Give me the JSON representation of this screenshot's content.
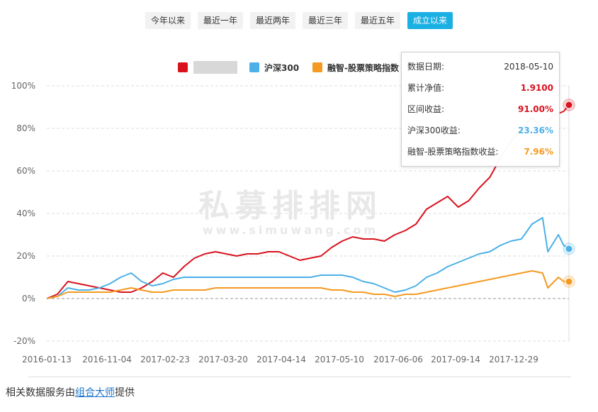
{
  "tabs": [
    {
      "label": "今年以来",
      "active": false
    },
    {
      "label": "最近一年",
      "active": false
    },
    {
      "label": "最近两年",
      "active": false
    },
    {
      "label": "最近三年",
      "active": false
    },
    {
      "label": "最近五年",
      "active": false
    },
    {
      "label": "成立以来",
      "active": true
    }
  ],
  "watermark": {
    "main": "私募排排网",
    "sub": "www.simuwang.com"
  },
  "tooltip": {
    "date_label": "数据日期:",
    "date_value": "2018-05-10",
    "nav_label": "累计净值:",
    "nav_value": "1.9100",
    "ret_label": "区间收益:",
    "ret_value": "91.00%",
    "hs300_label": "沪深300收益:",
    "hs300_value": "23.36%",
    "rz_label": "融智-股票策略指数收益:",
    "rz_value": "7.96%"
  },
  "footer": {
    "prefix": "相关数据服务由",
    "link": "组合大师",
    "suffix": "提供"
  },
  "chart_data": {
    "type": "line",
    "title": "",
    "xlabel": "",
    "ylabel": "",
    "x_ticks": [
      "2016-01-13",
      "2016-11-04",
      "2017-02-23",
      "2017-03-20",
      "2017-04-14",
      "2017-05-10",
      "2017-06-06",
      "2017-09-14",
      "2017-12-29"
    ],
    "y_ticks": [
      "100%",
      "80%",
      "60%",
      "40%",
      "20%",
      "0%",
      "-20%"
    ],
    "y_tick_values": [
      100,
      80,
      60,
      40,
      20,
      0,
      -20
    ],
    "ylim": [
      -20,
      100
    ],
    "grid": true,
    "legend_position": "top",
    "n_points": 100,
    "series": [
      {
        "name": "",
        "color": "#d9121e",
        "points": [
          [
            0,
            0
          ],
          [
            2,
            2
          ],
          [
            4,
            8
          ],
          [
            6,
            7
          ],
          [
            8,
            6
          ],
          [
            10,
            5
          ],
          [
            12,
            4
          ],
          [
            14,
            3
          ],
          [
            16,
            3
          ],
          [
            18,
            5
          ],
          [
            20,
            8
          ],
          [
            22,
            12
          ],
          [
            24,
            10
          ],
          [
            26,
            15
          ],
          [
            28,
            19
          ],
          [
            30,
            21
          ],
          [
            32,
            22
          ],
          [
            34,
            21
          ],
          [
            36,
            20
          ],
          [
            38,
            21
          ],
          [
            40,
            21
          ],
          [
            42,
            22
          ],
          [
            44,
            22
          ],
          [
            46,
            20
          ],
          [
            48,
            18
          ],
          [
            50,
            19
          ],
          [
            52,
            20
          ],
          [
            54,
            24
          ],
          [
            56,
            27
          ],
          [
            58,
            29
          ],
          [
            60,
            28
          ],
          [
            62,
            28
          ],
          [
            64,
            27
          ],
          [
            66,
            30
          ],
          [
            68,
            32
          ],
          [
            70,
            35
          ],
          [
            72,
            42
          ],
          [
            74,
            45
          ],
          [
            76,
            48
          ],
          [
            78,
            43
          ],
          [
            80,
            46
          ],
          [
            82,
            52
          ],
          [
            84,
            57
          ],
          [
            86,
            66
          ],
          [
            88,
            74
          ],
          [
            90,
            80
          ],
          [
            92,
            85
          ],
          [
            94,
            80
          ],
          [
            96,
            86
          ],
          [
            98,
            88
          ],
          [
            99,
            91
          ]
        ],
        "end_value": 91.0
      },
      {
        "name": "沪深300",
        "color": "#4cb0e8",
        "points": [
          [
            0,
            0
          ],
          [
            2,
            1
          ],
          [
            4,
            5
          ],
          [
            6,
            4
          ],
          [
            8,
            4
          ],
          [
            10,
            5
          ],
          [
            12,
            7
          ],
          [
            14,
            10
          ],
          [
            16,
            12
          ],
          [
            18,
            8
          ],
          [
            20,
            6
          ],
          [
            22,
            7
          ],
          [
            24,
            9
          ],
          [
            26,
            10
          ],
          [
            28,
            10
          ],
          [
            30,
            10
          ],
          [
            32,
            10
          ],
          [
            34,
            10
          ],
          [
            36,
            10
          ],
          [
            38,
            10
          ],
          [
            40,
            10
          ],
          [
            42,
            10
          ],
          [
            44,
            10
          ],
          [
            46,
            10
          ],
          [
            48,
            10
          ],
          [
            50,
            10
          ],
          [
            52,
            11
          ],
          [
            54,
            11
          ],
          [
            56,
            11
          ],
          [
            58,
            10
          ],
          [
            60,
            8
          ],
          [
            62,
            7
          ],
          [
            64,
            5
          ],
          [
            66,
            3
          ],
          [
            68,
            4
          ],
          [
            70,
            6
          ],
          [
            72,
            10
          ],
          [
            74,
            12
          ],
          [
            76,
            15
          ],
          [
            78,
            17
          ],
          [
            80,
            19
          ],
          [
            82,
            21
          ],
          [
            84,
            22
          ],
          [
            86,
            25
          ],
          [
            88,
            27
          ],
          [
            90,
            28
          ],
          [
            92,
            35
          ],
          [
            94,
            38
          ],
          [
            95,
            22
          ],
          [
            97,
            30
          ],
          [
            98,
            25
          ],
          [
            99,
            23.36
          ]
        ],
        "end_value": 23.36
      },
      {
        "name": "融智-股票策略指数",
        "color": "#f49a22",
        "points": [
          [
            0,
            0
          ],
          [
            2,
            1
          ],
          [
            4,
            3
          ],
          [
            6,
            3
          ],
          [
            8,
            3
          ],
          [
            10,
            3
          ],
          [
            12,
            3
          ],
          [
            14,
            4
          ],
          [
            16,
            5
          ],
          [
            18,
            4
          ],
          [
            20,
            3
          ],
          [
            22,
            3
          ],
          [
            24,
            4
          ],
          [
            26,
            4
          ],
          [
            28,
            4
          ],
          [
            30,
            4
          ],
          [
            32,
            5
          ],
          [
            34,
            5
          ],
          [
            36,
            5
          ],
          [
            38,
            5
          ],
          [
            40,
            5
          ],
          [
            42,
            5
          ],
          [
            44,
            5
          ],
          [
            46,
            5
          ],
          [
            48,
            5
          ],
          [
            50,
            5
          ],
          [
            52,
            5
          ],
          [
            54,
            4
          ],
          [
            56,
            4
          ],
          [
            58,
            3
          ],
          [
            60,
            3
          ],
          [
            62,
            2
          ],
          [
            64,
            2
          ],
          [
            66,
            1
          ],
          [
            68,
            2
          ],
          [
            70,
            2
          ],
          [
            72,
            3
          ],
          [
            74,
            4
          ],
          [
            76,
            5
          ],
          [
            78,
            6
          ],
          [
            80,
            7
          ],
          [
            82,
            8
          ],
          [
            84,
            9
          ],
          [
            86,
            10
          ],
          [
            88,
            11
          ],
          [
            90,
            12
          ],
          [
            92,
            13
          ],
          [
            94,
            12
          ],
          [
            95,
            5
          ],
          [
            97,
            10
          ],
          [
            98,
            8
          ],
          [
            99,
            7.96
          ]
        ],
        "end_value": 7.96
      }
    ]
  }
}
